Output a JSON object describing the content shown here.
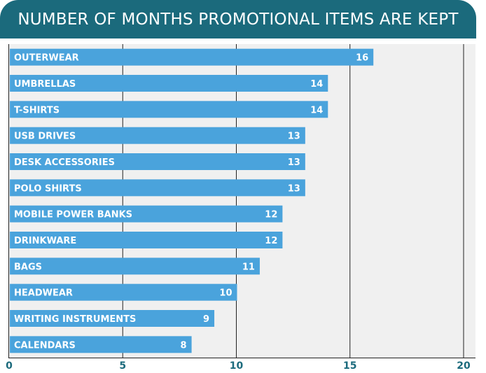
{
  "chart_data": {
    "type": "bar",
    "orientation": "horizontal",
    "title": "NUMBER OF MONTHS PROMOTIONAL ITEMS ARE KEPT",
    "categories": [
      "OUTERWEAR",
      "UMBRELLAS",
      "T-SHIRTS",
      "USB DRIVES",
      "DESK ACCESSORIES",
      "POLO SHIRTS",
      "MOBILE POWER BANKS",
      "DRINKWARE",
      "BAGS",
      "HEADWEAR",
      "WRITING INSTRUMENTS",
      "CALENDARS"
    ],
    "values": [
      16,
      14,
      14,
      13,
      13,
      13,
      12,
      12,
      11,
      10,
      9,
      8
    ],
    "xlim": [
      0,
      20
    ],
    "xticks": [
      0,
      5,
      10,
      15,
      20
    ],
    "grid": true,
    "bar_color": "#4aa3dc",
    "title_bg": "#1b6a7c",
    "tick_color": "#1b6a7c"
  }
}
